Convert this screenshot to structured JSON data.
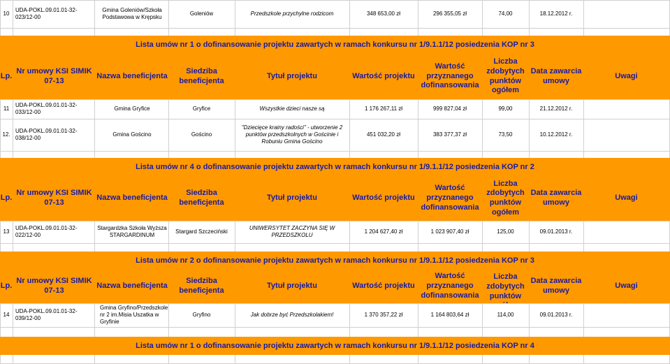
{
  "top_row": {
    "lp": "10",
    "nr": "UDA-POKL.09.01.01-32-023/12-00",
    "nazwa": "Gmina Goleniów/Szkoła Podstawowa w Krępsku",
    "siedziba": "Goleniów",
    "tytul": "Przedszkole przychylne rodzicom",
    "wartosc_projektu": "348 653,00 zł",
    "wartosc_dof": "296 355,05 zł",
    "punkty": "74,00",
    "data": "18.12.2012 r."
  },
  "headers": {
    "lp": "Lp.",
    "nr": "Nr umowy KSI SIMIK 07-13",
    "nazwa": "Nazwa beneficjenta",
    "siedziba": "Siedziba beneficjenta",
    "tytul": "Tytuł projektu",
    "wartosc_projektu": "Wartość projektu",
    "wartosc_dof": "Wartość przyznanego dofinansowania",
    "punkty": "Liczba zdobytych punktów ogółem",
    "data": "Data zawarcia umowy",
    "uwagi": "Uwagi"
  },
  "sections": [
    {
      "title": "Lista umów nr 1 o dofinansowanie projektu zawartych w ramach konkursu nr 1/9.1.1/12 posiedzenia KOP nr 3",
      "rows": [
        {
          "lp": "11",
          "nr": "UDA-POKL.09.01.01-32-033/12-00",
          "nazwa": "Gmina Gryfice",
          "siedziba": "Gryfice",
          "tytul": "Wszystkie dzieci nasze są",
          "wartosc_projektu": "1 176 267,11 zł",
          "wartosc_dof": "999 827,04 zł",
          "punkty": "99,00",
          "data": "21.12.2012 r."
        },
        {
          "lp": "12.",
          "nr": "UDA-POKL.09.01.01-32-038/12-00",
          "nazwa": "Gmina Gościno",
          "siedziba": "Gościno",
          "tytul": "\"Dziecięce krainy radości\" - utworzenie 2 punktów przedszkolnych w Gościnie i Robuniu Gmina Gościno",
          "wartosc_projektu": "451 032,20 zł",
          "wartosc_dof": "383 377,37 zł",
          "punkty": "73,50",
          "data": "10.12.2012 r."
        }
      ]
    },
    {
      "title": "Lista umów nr 4 o dofinansowanie projektu zawartych w ramach konkursu nr 1/9.1.1/12 posiedzenia KOP nr 2",
      "rows": [
        {
          "lp": "13",
          "nr": "UDA-POKL.09.01.01-32-022/12-00",
          "nazwa": "Stargardzka Szkoła Wyższa STARGARDINUM",
          "siedziba": "Stargard Szczeciński",
          "tytul": "UNIWERSYTET ZACZYNA SIĘ W PRZEDSZKOLU",
          "wartosc_projektu": "1 204 627,40 zł",
          "wartosc_dof": "1 023 907,40 zł",
          "punkty": "125,00",
          "data": "09.01.2013 r."
        }
      ]
    },
    {
      "title": "Lista umów nr 2 o dofinansowanie projektu zawartych w ramach konkursu nr 1/9.1.1/12 posiedzenia KOP nr 3",
      "rows": [
        {
          "lp": "14",
          "nr": "UDA-POKL.09.01.01-32-039/12-00",
          "nazwa": "Gmina Gryfino/Przedszkole nr 2 im.Misia Uszatka w Gryfinie",
          "siedziba": "Gryfino",
          "tytul": "Jak dobrze być Przedszkolakiem!",
          "wartosc_projektu": "1 370 357,22 zł",
          "wartosc_dof": "1 164 803,64 zł",
          "punkty": "114,00",
          "data": "09.01.2013 r."
        }
      ]
    }
  ],
  "bottom_title": "Lista umów nr 1 o dofinansowanie projektu zawartych w ramach konkursu nr 1/9.1.1/12 posiedzenia KOP nr 4",
  "colors": {
    "orange": "#ff9900",
    "header_text": "#1a1aa0",
    "grid": "#cfcfcf"
  }
}
